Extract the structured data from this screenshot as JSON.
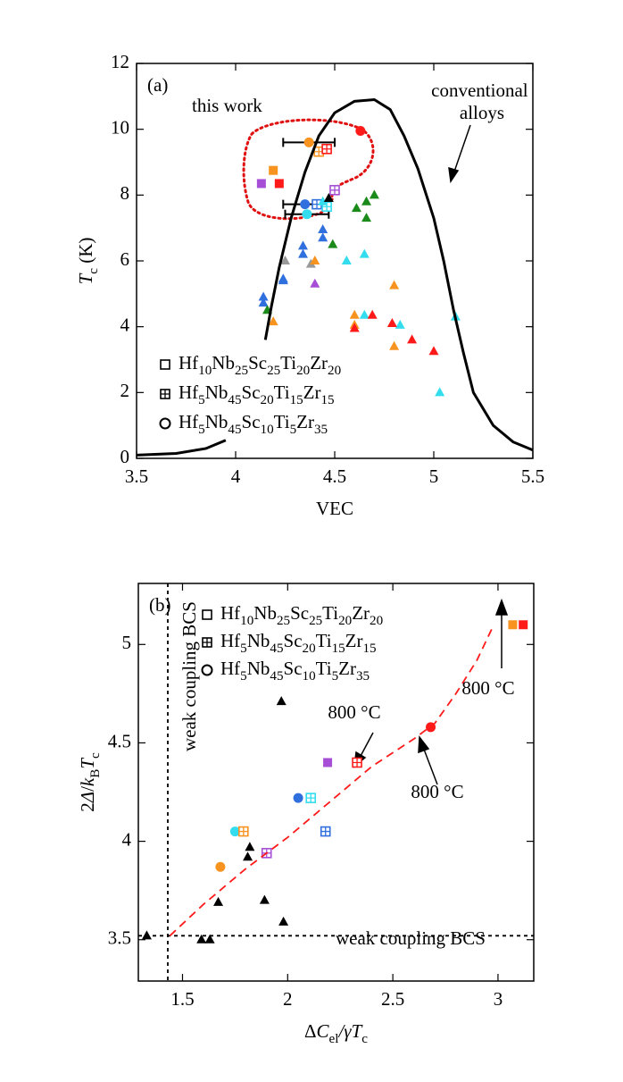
{
  "chart_data": [
    {
      "type": "scatter",
      "panel_label": "(a)",
      "x_label": "VEC",
      "y_label": "Tc (K)",
      "annotations": [
        "this work",
        "conventional alloys"
      ],
      "xlim": [
        3.5,
        5.5
      ],
      "ylim": [
        0,
        12
      ],
      "xticks": [
        3.5,
        4,
        4.5,
        5,
        5.5
      ],
      "yticks": [
        0,
        2,
        4,
        6,
        8,
        10,
        12
      ],
      "legend": [
        {
          "name": "Hf10Nb25Sc25Ti20Zr20",
          "marker": "square",
          "style": "open"
        },
        {
          "name": "Hf5Nb45Sc20Ti15Zr15",
          "marker": "square",
          "style": "crossed"
        },
        {
          "name": "Hf5Nb45Sc10Ti5Zr35",
          "marker": "circle",
          "style": "open"
        }
      ],
      "series": [
        {
          "marker": "circle",
          "style": "filled",
          "x": [
            4.37,
            4.63,
            4.35,
            4.36
          ],
          "values": [
            9.6,
            9.95,
            7.72,
            7.42
          ],
          "colors": [
            "#f7931e",
            "#ff1a1a",
            "#2f6fde",
            "#33ddee"
          ],
          "xerr": [
            0.13,
            null,
            0.11,
            0.11
          ]
        },
        {
          "marker": "square",
          "style": "filled",
          "x": [
            4.19,
            4.13,
            4.22
          ],
          "values": [
            8.75,
            8.35,
            8.35
          ],
          "colors": [
            "#f7931e",
            "#a64fd6",
            "#ff1a1a"
          ]
        },
        {
          "marker": "square",
          "style": "crossed",
          "x": [
            4.42,
            4.46,
            4.41,
            4.5,
            4.46
          ],
          "values": [
            9.32,
            9.4,
            7.72,
            8.15,
            7.65
          ],
          "colors": [
            "#f7931e",
            "#ff1a1a",
            "#2f6fde",
            "#a64fd6",
            "#33ddee"
          ]
        },
        {
          "marker": "triangle",
          "style": "filled",
          "x": [
            4.14,
            4.14,
            4.24,
            4.24,
            4.34,
            4.34,
            4.44,
            4.44,
            4.16,
            4.49,
            4.61,
            4.66,
            4.7,
            4.66,
            4.25,
            4.38,
            4.19,
            4.4,
            4.6,
            4.6,
            4.8,
            4.8,
            4.4,
            4.56,
            4.65,
            4.65,
            4.83,
            5.03,
            5.11,
            4.44,
            4.6,
            4.69,
            4.79,
            4.89,
            5.0,
            4.47
          ],
          "values": [
            4.9,
            4.72,
            5.45,
            5.4,
            6.45,
            6.2,
            6.95,
            6.7,
            4.5,
            6.5,
            7.6,
            7.8,
            8.0,
            7.3,
            6.0,
            5.9,
            4.15,
            6.0,
            4.35,
            4.05,
            5.25,
            3.4,
            5.3,
            6.0,
            6.2,
            4.35,
            4.05,
            2.0,
            4.3,
            7.8,
            3.95,
            4.35,
            4.1,
            3.6,
            3.25,
            7.9
          ],
          "colors": [
            "#2f6fde",
            "#2f6fde",
            "#2f6fde",
            "#2f6fde",
            "#2f6fde",
            "#2f6fde",
            "#2f6fde",
            "#2f6fde",
            "#1a8a1a",
            "#1a8a1a",
            "#1a8a1a",
            "#1a8a1a",
            "#1a8a1a",
            "#1a8a1a",
            "#999999",
            "#999999",
            "#f7931e",
            "#f7931e",
            "#f7931e",
            "#f7931e",
            "#f7931e",
            "#f7931e",
            "#a64fd6",
            "#33ddee",
            "#33ddee",
            "#33ddee",
            "#33ddee",
            "#33ddee",
            "#33ddee",
            "#33ddee",
            "#ff1a1a",
            "#ff1a1a",
            "#ff1a1a",
            "#ff1a1a",
            "#ff1a1a",
            "#000000"
          ]
        },
        {
          "marker": "line",
          "style": "solid",
          "color": "#000000",
          "x": [
            3.5,
            3.7,
            3.85,
            3.95,
            null,
            4.15,
            4.18,
            4.22,
            4.28,
            4.35,
            4.42,
            4.5,
            4.6,
            4.7,
            4.78,
            4.85,
            4.92,
            5.0,
            5.05,
            5.1,
            5.15,
            5.2,
            5.3,
            5.4,
            5.5
          ],
          "values": [
            0.1,
            0.15,
            0.3,
            0.55,
            null,
            3.6,
            4.6,
            5.8,
            7.3,
            8.7,
            9.8,
            10.5,
            10.85,
            10.9,
            10.6,
            9.8,
            8.8,
            7.3,
            6.0,
            4.5,
            3.2,
            2.0,
            1.0,
            0.5,
            0.25
          ]
        }
      ]
    },
    {
      "type": "scatter",
      "panel_label": "(b)",
      "x_label": "ΔCel/γTc",
      "y_label": "2Δ/kBTc",
      "annotations": [
        "weak coupling BCS",
        "weak coupling BCS",
        "800 °C",
        "800 °C",
        "800 °C"
      ],
      "xlim": [
        1.29,
        3.17
      ],
      "ylim": [
        3.29,
        5.31
      ],
      "xticks": [
        1.5,
        2,
        2.5,
        3
      ],
      "yticks": [
        3.5,
        4,
        4.5,
        5
      ],
      "reference_lines": {
        "x": [
          1.43
        ],
        "y": [
          3.52
        ]
      },
      "legend": [
        {
          "name": "Hf10Nb25Sc25Ti20Zr20",
          "marker": "square",
          "style": "open"
        },
        {
          "name": "Hf5Nb45Sc20Ti15Zr15",
          "marker": "square",
          "style": "crossed"
        },
        {
          "name": "Hf5Nb45Sc10Ti5Zr35",
          "marker": "circle",
          "style": "open"
        }
      ],
      "series": [
        {
          "marker": "square",
          "style": "filled",
          "x": [
            3.07,
            3.12,
            2.19
          ],
          "values": [
            5.1,
            5.1,
            4.4
          ],
          "colors": [
            "#f7931e",
            "#ff1a1a",
            "#a64fd6"
          ]
        },
        {
          "marker": "circle",
          "style": "filled",
          "x": [
            2.68,
            2.05,
            1.75,
            1.68
          ],
          "values": [
            4.58,
            4.22,
            4.05,
            3.87
          ],
          "colors": [
            "#ff1a1a",
            "#2f6fde",
            "#33ddee",
            "#f7931e"
          ]
        },
        {
          "marker": "square",
          "style": "crossed",
          "x": [
            2.33,
            2.11,
            2.18,
            1.79,
            1.9
          ],
          "values": [
            4.4,
            4.22,
            4.05,
            4.05,
            3.94
          ],
          "colors": [
            "#ff1a1a",
            "#33ddee",
            "#2f6fde",
            "#f7931e",
            "#a64fd6"
          ]
        },
        {
          "marker": "triangle",
          "style": "filled",
          "x": [
            1.97,
            1.82,
            1.81,
            1.67,
            1.89,
            1.98,
            1.33,
            1.59,
            1.63
          ],
          "values": [
            4.71,
            3.97,
            3.92,
            3.69,
            3.7,
            3.59,
            3.52,
            3.5,
            3.5
          ],
          "colors": [
            "#000000",
            "#000000",
            "#000000",
            "#000000",
            "#000000",
            "#000000",
            "#000000",
            "#000000",
            "#000000"
          ]
        },
        {
          "marker": "line",
          "style": "dashed",
          "color": "#ff1a1a",
          "x": [
            1.44,
            1.6,
            1.8,
            2.0,
            2.2,
            2.4,
            2.6,
            2.7,
            2.8,
            2.9,
            2.98
          ],
          "values": [
            3.52,
            3.68,
            3.86,
            4.02,
            4.2,
            4.38,
            4.52,
            4.6,
            4.75,
            4.92,
            5.1
          ]
        }
      ]
    }
  ]
}
